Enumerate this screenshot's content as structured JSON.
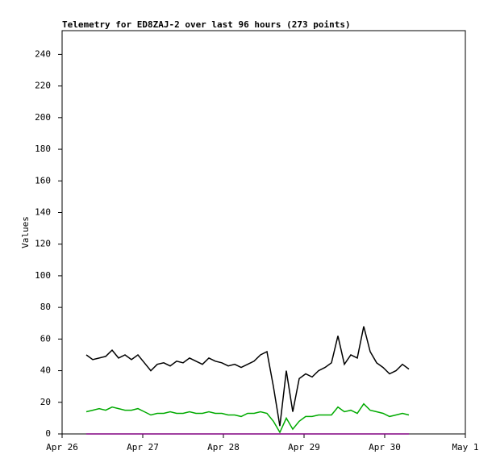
{
  "chart_data": {
    "type": "line",
    "title": "Telemetry for ED8ZAJ-2 over last 96 hours (273 points)",
    "y_label": "Values",
    "x": [
      26.3,
      26.38,
      26.46,
      26.54,
      26.62,
      26.7,
      26.78,
      26.86,
      26.94,
      27.02,
      27.1,
      27.18,
      27.26,
      27.34,
      27.42,
      27.5,
      27.58,
      27.66,
      27.74,
      27.82,
      27.9,
      27.98,
      28.06,
      28.14,
      28.22,
      28.3,
      28.38,
      28.46,
      28.54,
      28.62,
      28.7,
      28.78,
      28.86,
      28.94,
      29.02,
      29.1,
      29.18,
      29.26,
      29.34,
      29.42,
      29.5,
      29.58,
      29.66,
      29.74,
      29.82,
      29.9,
      29.98,
      30.06,
      30.14,
      30.22,
      30.3
    ],
    "series": [
      {
        "color": "#000000",
        "values": [
          50,
          47,
          48,
          49,
          53,
          48,
          50,
          47,
          50,
          45,
          40,
          44,
          45,
          43,
          46,
          45,
          48,
          46,
          44,
          48,
          46,
          45,
          43,
          44,
          42,
          44,
          46,
          50,
          52,
          30,
          5,
          40,
          14,
          35,
          38,
          36,
          40,
          42,
          45,
          62,
          44,
          50,
          48,
          68,
          52,
          45,
          42,
          38,
          40,
          44,
          41
        ]
      },
      {
        "color": "#00aa00",
        "values": [
          14,
          15,
          16,
          15,
          17,
          16,
          15,
          15,
          16,
          14,
          12,
          13,
          13,
          14,
          13,
          13,
          14,
          13,
          13,
          14,
          13,
          13,
          12,
          12,
          11,
          13,
          13,
          14,
          13,
          8,
          1,
          10,
          3,
          8,
          11,
          11,
          12,
          12,
          12,
          17,
          14,
          15,
          13,
          19,
          15,
          14,
          13,
          11,
          12,
          13,
          12
        ]
      },
      {
        "color": "#800080",
        "values": [
          0,
          0,
          0,
          0,
          0,
          0,
          0,
          0,
          0,
          0,
          0,
          0,
          0,
          0,
          0,
          0,
          0,
          0,
          0,
          0,
          0,
          0,
          0,
          0,
          0,
          0,
          0,
          0,
          0,
          0,
          0,
          0,
          0,
          0,
          0,
          0,
          0,
          0,
          0,
          0,
          0,
          0,
          0,
          0,
          0,
          0,
          0,
          0,
          0,
          0,
          0
        ]
      }
    ],
    "xlim": [
      26,
      31
    ],
    "xticks": [
      {
        "value": 26,
        "label": "Apr 26"
      },
      {
        "value": 27,
        "label": "Apr 27"
      },
      {
        "value": 28,
        "label": "Apr 28"
      },
      {
        "value": 29,
        "label": "Apr 29"
      },
      {
        "value": 30,
        "label": "Apr 30"
      },
      {
        "value": 31,
        "label": "May 1"
      }
    ],
    "ylim": [
      0,
      255
    ],
    "yticks": [
      0,
      20,
      40,
      60,
      80,
      100,
      120,
      140,
      160,
      180,
      200,
      220,
      240
    ],
    "grid": false
  }
}
